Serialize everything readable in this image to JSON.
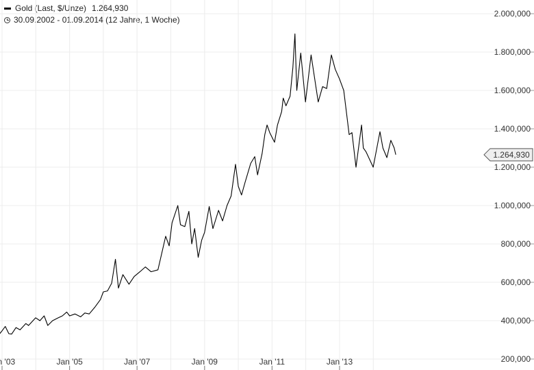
{
  "legend": {
    "series_label": "Gold (Last, $/Unze)",
    "last_value": "1.264,930",
    "period": "30.09.2002 - 01.09.2014 (12 Jahre, 1 Woche)"
  },
  "chart_data": {
    "type": "line",
    "title": "",
    "xlabel": "",
    "ylabel": "",
    "ylim": [
      200,
      2000
    ],
    "xlim": [
      "2002-09-30",
      "2014-09-01"
    ],
    "y_ticks": [
      200,
      400,
      600,
      800,
      1000,
      1200,
      1400,
      1600,
      1800,
      2000
    ],
    "y_tick_labels": [
      "200,000",
      "400,000",
      "600,000",
      "800,000",
      "1.000,000",
      "1.200,000",
      "1.400,000",
      "1.600,000",
      "1.800,000",
      "2.000,000"
    ],
    "x_ticks": [
      "2003-01-01",
      "2005-01-01",
      "2007-01-01",
      "2009-01-01",
      "2011-01-01",
      "2013-01-01"
    ],
    "x_tick_labels": [
      "Jan '03",
      "Jan '05",
      "Jan '07",
      "Jan '09",
      "Jan '11",
      "Jan '13"
    ],
    "current_value": 1264.93,
    "current_value_label": "1.264,930",
    "grid": true,
    "line_color": "#000000",
    "series": [
      {
        "x": [
          "2002-09-30",
          "2002-11-15",
          "2003-01-01",
          "2003-02-05",
          "2003-03-15",
          "2003-04-15",
          "2003-06-01",
          "2003-07-15",
          "2003-09-15",
          "2003-10-15",
          "2003-12-31",
          "2004-02-15",
          "2004-04-01",
          "2004-05-10",
          "2004-07-01",
          "2004-09-01",
          "2004-10-15",
          "2004-12-01",
          "2005-01-01",
          "2005-03-01",
          "2005-05-01",
          "2005-06-15",
          "2005-08-01",
          "2005-10-01",
          "2005-12-01",
          "2006-01-01",
          "2006-02-15",
          "2006-04-01",
          "2006-05-12",
          "2006-06-14",
          "2006-08-01",
          "2006-10-06",
          "2006-12-01",
          "2007-02-01",
          "2007-04-01",
          "2007-06-01",
          "2007-08-15",
          "2007-09-15",
          "2007-11-07",
          "2007-12-15",
          "2008-01-15",
          "2008-03-17",
          "2008-04-15",
          "2008-06-01",
          "2008-07-15",
          "2008-08-15",
          "2008-09-15",
          "2008-10-24",
          "2008-12-01",
          "2009-01-01",
          "2009-02-20",
          "2009-04-01",
          "2009-06-01",
          "2009-07-15",
          "2009-09-01",
          "2009-10-15",
          "2009-12-02",
          "2010-01-01",
          "2010-02-05",
          "2010-03-15",
          "2010-05-15",
          "2010-06-28",
          "2010-07-28",
          "2010-09-15",
          "2010-10-15",
          "2010-11-08",
          "2010-12-07",
          "2011-01-28",
          "2011-03-01",
          "2011-04-15",
          "2011-05-02",
          "2011-06-01",
          "2011-07-15",
          "2011-08-15",
          "2011-09-06",
          "2011-09-26",
          "2011-11-08",
          "2011-12-29",
          "2012-02-28",
          "2012-05-15",
          "2012-07-01",
          "2012-08-15",
          "2012-10-04",
          "2012-11-15",
          "2012-12-31",
          "2013-02-15",
          "2013-04-15",
          "2013-05-15",
          "2013-06-28",
          "2013-08-27",
          "2013-09-15",
          "2013-10-15",
          "2013-12-31",
          "2014-03-14",
          "2014-04-15",
          "2014-05-28",
          "2014-07-10",
          "2014-08-15",
          "2014-09-01"
        ],
        "y": [
          322,
          319,
          347,
          370,
          332,
          330,
          364,
          352,
          385,
          375,
          415,
          400,
          425,
          375,
          400,
          415,
          425,
          445,
          425,
          435,
          420,
          440,
          435,
          470,
          510,
          550,
          555,
          595,
          720,
          570,
          640,
          590,
          630,
          655,
          680,
          655,
          665,
          730,
          840,
          790,
          910,
          1000,
          900,
          890,
          970,
          800,
          880,
          730,
          820,
          860,
          995,
          880,
          975,
          920,
          1000,
          1050,
          1215,
          1100,
          1055,
          1120,
          1220,
          1255,
          1160,
          1270,
          1370,
          1420,
          1380,
          1330,
          1420,
          1490,
          1560,
          1520,
          1570,
          1720,
          1895,
          1600,
          1795,
          1540,
          1785,
          1540,
          1620,
          1610,
          1785,
          1710,
          1660,
          1600,
          1370,
          1380,
          1200,
          1420,
          1300,
          1280,
          1200,
          1385,
          1300,
          1250,
          1340,
          1300,
          1265
        ]
      }
    ]
  }
}
